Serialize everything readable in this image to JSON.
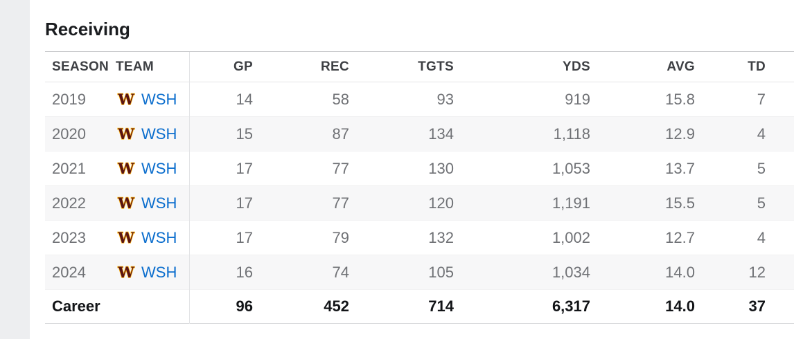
{
  "page": {
    "section_title": "Receiving"
  },
  "team": {
    "abbr": "WSH",
    "logo_letter": "W",
    "logo_primary_color": "#5A1414",
    "logo_accent_color": "#FFB612",
    "link_color": "#0a6dcd"
  },
  "table": {
    "columns": [
      {
        "key": "season",
        "label": "SEASON"
      },
      {
        "key": "team",
        "label": "TEAM"
      },
      {
        "key": "gp",
        "label": "GP"
      },
      {
        "key": "rec",
        "label": "REC"
      },
      {
        "key": "tgts",
        "label": "TGTS"
      },
      {
        "key": "yds",
        "label": "YDS"
      },
      {
        "key": "avg",
        "label": "AVG"
      },
      {
        "key": "td",
        "label": "TD"
      }
    ],
    "rows": [
      {
        "season": "2019",
        "team": "WSH",
        "gp": "14",
        "rec": "58",
        "tgts": "93",
        "yds": "919",
        "avg": "15.8",
        "td": "7"
      },
      {
        "season": "2020",
        "team": "WSH",
        "gp": "15",
        "rec": "87",
        "tgts": "134",
        "yds": "1,118",
        "avg": "12.9",
        "td": "4"
      },
      {
        "season": "2021",
        "team": "WSH",
        "gp": "17",
        "rec": "77",
        "tgts": "130",
        "yds": "1,053",
        "avg": "13.7",
        "td": "5"
      },
      {
        "season": "2022",
        "team": "WSH",
        "gp": "17",
        "rec": "77",
        "tgts": "120",
        "yds": "1,191",
        "avg": "15.5",
        "td": "5"
      },
      {
        "season": "2023",
        "team": "WSH",
        "gp": "17",
        "rec": "79",
        "tgts": "132",
        "yds": "1,002",
        "avg": "12.7",
        "td": "4"
      },
      {
        "season": "2024",
        "team": "WSH",
        "gp": "16",
        "rec": "74",
        "tgts": "105",
        "yds": "1,034",
        "avg": "14.0",
        "td": "12"
      }
    ],
    "career": {
      "label": "Career",
      "gp": "96",
      "rec": "452",
      "tgts": "714",
      "yds": "6,317",
      "avg": "14.0",
      "td": "37"
    },
    "stripe_color": "#f7f7f8"
  }
}
